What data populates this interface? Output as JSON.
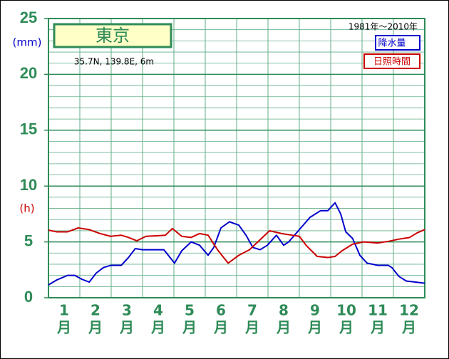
{
  "chart_data": {
    "type": "line",
    "title": "東京",
    "location": "35.7N, 139.8E, 6m",
    "period": "1981年〜2010年",
    "y_unit_precip": "(mm)",
    "y_unit_sun": "(h)",
    "categories": [
      "1",
      "2",
      "3",
      "4",
      "5",
      "6",
      "7",
      "8",
      "9",
      "10",
      "11",
      "12"
    ],
    "month_suffix": "月",
    "xlim": [
      0,
      12
    ],
    "ylim": [
      0,
      25
    ],
    "yticks": [
      0,
      5,
      10,
      15,
      20,
      25
    ],
    "yminor": 1,
    "grid": true,
    "series": [
      {
        "name": "降水量",
        "color": "#0000cc",
        "x": [
          0,
          0.27,
          0.61,
          0.84,
          1.07,
          1.3,
          1.52,
          1.75,
          1.98,
          2.32,
          2.55,
          2.77,
          3,
          3.34,
          3.68,
          4.02,
          4.25,
          4.55,
          4.82,
          5.09,
          5.27,
          5.5,
          5.77,
          6.07,
          6.3,
          6.52,
          6.75,
          6.98,
          7.27,
          7.5,
          7.66,
          8,
          8.34,
          8.68,
          8.91,
          9.14,
          9.32,
          9.48,
          9.7,
          9.93,
          10.16,
          10.5,
          10.84,
          10.95,
          11.18,
          11.41,
          11.7,
          12
        ],
        "values": [
          1.15,
          1.6,
          2.0,
          2.0,
          1.65,
          1.4,
          2.2,
          2.7,
          2.9,
          2.9,
          3.6,
          4.4,
          4.3,
          4.3,
          4.3,
          3.1,
          4.2,
          5.0,
          4.7,
          3.8,
          4.5,
          6.25,
          6.8,
          6.5,
          5.6,
          4.5,
          4.3,
          4.7,
          5.6,
          4.7,
          5.0,
          6.1,
          7.2,
          7.8,
          7.8,
          8.5,
          7.5,
          5.9,
          5.3,
          3.8,
          3.1,
          2.9,
          2.9,
          2.7,
          1.9,
          1.5,
          1.4,
          1.3
        ]
      },
      {
        "name": "日照時間",
        "color": "#cc0000",
        "x": [
          0,
          0.27,
          0.61,
          0.95,
          1.3,
          1.64,
          1.98,
          2.32,
          2.55,
          2.82,
          3.11,
          3.45,
          3.73,
          3.95,
          4.25,
          4.55,
          4.82,
          5.09,
          5.39,
          5.73,
          6.07,
          6.41,
          6.75,
          7.05,
          7.43,
          7.77,
          8,
          8.23,
          8.57,
          8.91,
          9.14,
          9.36,
          9.7,
          10.05,
          10.5,
          10.84,
          11.18,
          11.52,
          11.75,
          12
        ],
        "values": [
          6.05,
          5.9,
          5.9,
          6.25,
          6.1,
          5.75,
          5.5,
          5.6,
          5.4,
          5.1,
          5.5,
          5.55,
          5.6,
          6.2,
          5.5,
          5.4,
          5.75,
          5.6,
          4.3,
          3.1,
          3.8,
          4.3,
          5.2,
          6.0,
          5.75,
          5.6,
          5.5,
          4.65,
          3.7,
          3.6,
          3.7,
          4.2,
          4.8,
          5.0,
          4.9,
          5.05,
          5.25,
          5.4,
          5.8,
          6.1
        ]
      }
    ]
  }
}
